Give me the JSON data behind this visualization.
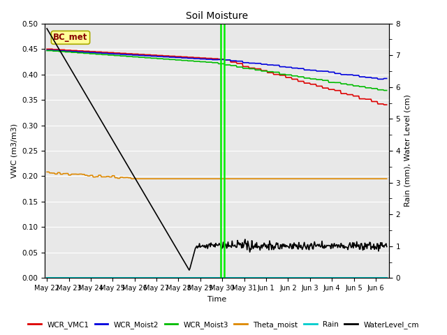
{
  "title": "Soil Moisture",
  "xlabel": "Time",
  "ylabel_left": "VWC (m3/m3)",
  "ylabel_right": "Rain (mm), Water Level (cm)",
  "annotation_text": "BC_met",
  "ylim_left": [
    0.0,
    0.5
  ],
  "ylim_right": [
    0.0,
    8.0
  ],
  "yticks_left": [
    0.0,
    0.05,
    0.1,
    0.15,
    0.2,
    0.25,
    0.3,
    0.35,
    0.4,
    0.45,
    0.5
  ],
  "yticks_right": [
    0.0,
    1.0,
    2.0,
    3.0,
    4.0,
    5.0,
    6.0,
    7.0,
    8.0
  ],
  "colors": {
    "WCR_VMC1": "#dd0000",
    "WCR_Moist2": "#0000dd",
    "WCR_Moist3": "#00bb00",
    "Theta_moist": "#dd8800",
    "Rain": "#00cccc",
    "WaterLevel_cm": "#000000"
  },
  "bg_color": "#e8e8e8",
  "fig_color": "#ffffff",
  "vline_color": "#00ee00",
  "n_points": 500,
  "total_days": 15.5,
  "vline_day": 8.0,
  "legend_labels": [
    "WCR_VMC1",
    "WCR_Moist2",
    "WCR_Moist3",
    "Theta_moist",
    "Rain",
    "WaterLevel_cm"
  ]
}
